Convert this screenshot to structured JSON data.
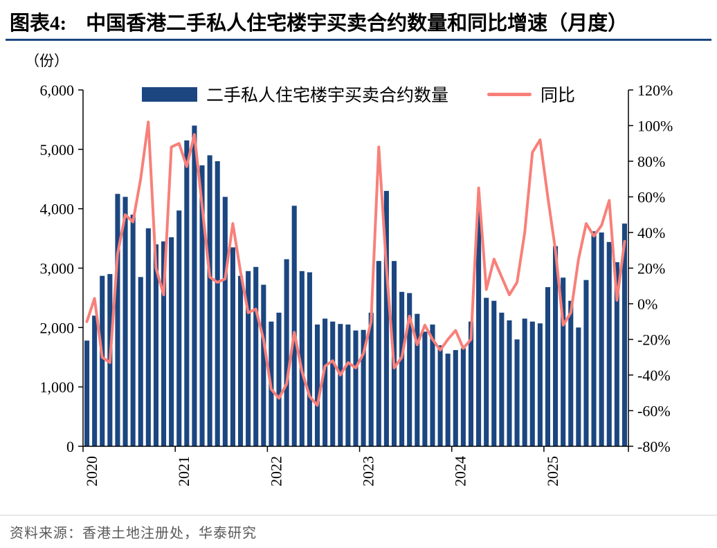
{
  "header": {
    "tag": "图表4:",
    "title": "中国香港二手私人住宅楼宇买卖合约数量和同比增速（月度）"
  },
  "unit_label": "（份）",
  "legend": {
    "bars": "二手私人住宅楼宇买卖合约数量",
    "line": "同比"
  },
  "footer": {
    "source": "资料来源：香港土地注册处，华泰研究"
  },
  "colors": {
    "bar": "#1B4680",
    "line": "#F8807A",
    "rule": "#1B4680"
  },
  "chart_data": {
    "type": "bar",
    "title": "中国香港二手私人住宅楼宇买卖合约数量和同比增速（月度）",
    "xlabel": "",
    "ylabel_left": "（份）",
    "ylabel_right": "%",
    "grid": false,
    "legend_position": "top-center",
    "x": [
      "2020-01",
      "2020-02",
      "2020-03",
      "2020-04",
      "2020-05",
      "2020-06",
      "2020-07",
      "2020-08",
      "2020-09",
      "2020-10",
      "2020-11",
      "2020-12",
      "2021-01",
      "2021-02",
      "2021-03",
      "2021-04",
      "2021-05",
      "2021-06",
      "2021-07",
      "2021-08",
      "2021-09",
      "2021-10",
      "2021-11",
      "2021-12",
      "2022-01",
      "2022-02",
      "2022-03",
      "2022-04",
      "2022-05",
      "2022-06",
      "2022-07",
      "2022-08",
      "2022-09",
      "2022-10",
      "2022-11",
      "2022-12",
      "2023-01",
      "2023-02",
      "2023-03",
      "2023-04",
      "2023-05",
      "2023-06",
      "2023-07",
      "2023-08",
      "2023-09",
      "2023-10",
      "2023-11",
      "2023-12",
      "2024-01",
      "2024-02",
      "2024-03",
      "2024-04",
      "2024-05",
      "2024-06",
      "2024-07",
      "2024-08",
      "2024-09",
      "2024-10",
      "2024-11",
      "2024-12",
      "2025-01",
      "2025-02",
      "2025-03",
      "2025-04",
      "2025-05",
      "2025-06",
      "2025-07",
      "2025-08",
      "2025-09",
      "2025-10",
      "2025-11"
    ],
    "series": [
      {
        "name": "二手私人住宅楼宇买卖合约数量",
        "type": "bar",
        "axis": "left",
        "values": [
          1780,
          2200,
          2870,
          2900,
          4250,
          4200,
          3900,
          2850,
          3670,
          3400,
          3450,
          3520,
          3970,
          5150,
          5400,
          4730,
          4900,
          4800,
          4200,
          3350,
          2870,
          2950,
          3020,
          2720,
          2100,
          2250,
          3150,
          4050,
          2950,
          2930,
          2050,
          2150,
          2100,
          2060,
          2050,
          1950,
          1960,
          2250,
          3120,
          4300,
          3120,
          2600,
          2580,
          2230,
          1930,
          2050,
          1700,
          1560,
          1620,
          1650,
          2100,
          4000,
          2500,
          2450,
          2250,
          2120,
          1800,
          2150,
          2100,
          2070,
          2680,
          3370,
          2840,
          2450,
          2000,
          2800,
          3620,
          3600,
          3440,
          3100,
          3750
        ]
      },
      {
        "name": "同比",
        "type": "line",
        "axis": "right",
        "values": [
          -10,
          3,
          -30,
          -33,
          28,
          50,
          46,
          70,
          102,
          20,
          5,
          88,
          90,
          77,
          95,
          55,
          15,
          12,
          14,
          45,
          18,
          -5,
          -3,
          -20,
          -48,
          -53,
          -45,
          -16,
          -38,
          -52,
          -57,
          -35,
          -32,
          -40,
          -33,
          -36,
          -28,
          -10,
          88,
          20,
          -36,
          -30,
          -7,
          -23,
          -12,
          -20,
          -26,
          -20,
          -15,
          -25,
          -20,
          65,
          8,
          25,
          15,
          5,
          12,
          40,
          85,
          92,
          60,
          30,
          -12,
          -5,
          25,
          45,
          38,
          44,
          58,
          2,
          35
        ]
      }
    ],
    "left_axis": {
      "min": 0,
      "max": 6000,
      "tick_step": 1000,
      "ticks": [
        0,
        1000,
        2000,
        3000,
        4000,
        5000,
        6000
      ]
    },
    "right_axis": {
      "min": -80,
      "max": 120,
      "tick_step": 20,
      "ticks": [
        -80,
        -60,
        -40,
        -20,
        0,
        20,
        40,
        60,
        80,
        100,
        120
      ]
    },
    "x_ticks": [
      {
        "label": "2020",
        "index": 0
      },
      {
        "label": "2021",
        "index": 12
      },
      {
        "label": "2022",
        "index": 24
      },
      {
        "label": "2023",
        "index": 36
      },
      {
        "label": "2024",
        "index": 48
      },
      {
        "label": "2025",
        "index": 60
      }
    ]
  }
}
